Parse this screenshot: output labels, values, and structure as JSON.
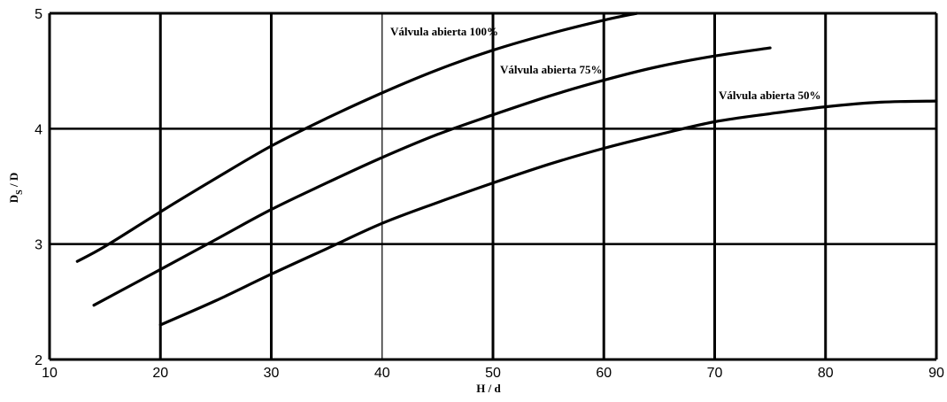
{
  "chart_data": {
    "type": "line",
    "xlabel": "H / d",
    "ylabel": {
      "main": "D",
      "sub": "S",
      "rest": " / D"
    },
    "xlim": [
      10,
      90
    ],
    "ylim": [
      2,
      5
    ],
    "x_ticks": [
      10,
      20,
      30,
      40,
      50,
      60,
      70,
      80,
      90
    ],
    "y_ticks": [
      2,
      3,
      4,
      5
    ],
    "grid": true,
    "series": [
      {
        "name": "Válvula abierta 100%",
        "x": [
          12.5,
          15,
          20,
          25,
          30,
          35,
          40,
          45,
          50,
          55,
          60,
          63
        ],
        "y": [
          2.85,
          2.98,
          3.28,
          3.57,
          3.85,
          4.09,
          4.31,
          4.51,
          4.68,
          4.82,
          4.94,
          5.0
        ]
      },
      {
        "name": "Válvula abierta 75%",
        "x": [
          14,
          20,
          25,
          30,
          35,
          40,
          45,
          50,
          55,
          60,
          65,
          70,
          75
        ],
        "y": [
          2.47,
          2.78,
          3.04,
          3.3,
          3.53,
          3.75,
          3.95,
          4.12,
          4.28,
          4.42,
          4.54,
          4.63,
          4.7
        ]
      },
      {
        "name": "Válvula abierta 50%",
        "x": [
          20,
          25,
          30,
          35,
          40,
          45,
          50,
          55,
          60,
          65,
          70,
          75,
          80,
          85,
          90
        ],
        "y": [
          2.3,
          2.51,
          2.74,
          2.96,
          3.18,
          3.36,
          3.53,
          3.69,
          3.83,
          3.95,
          4.06,
          4.13,
          4.19,
          4.23,
          4.24
        ]
      }
    ]
  }
}
